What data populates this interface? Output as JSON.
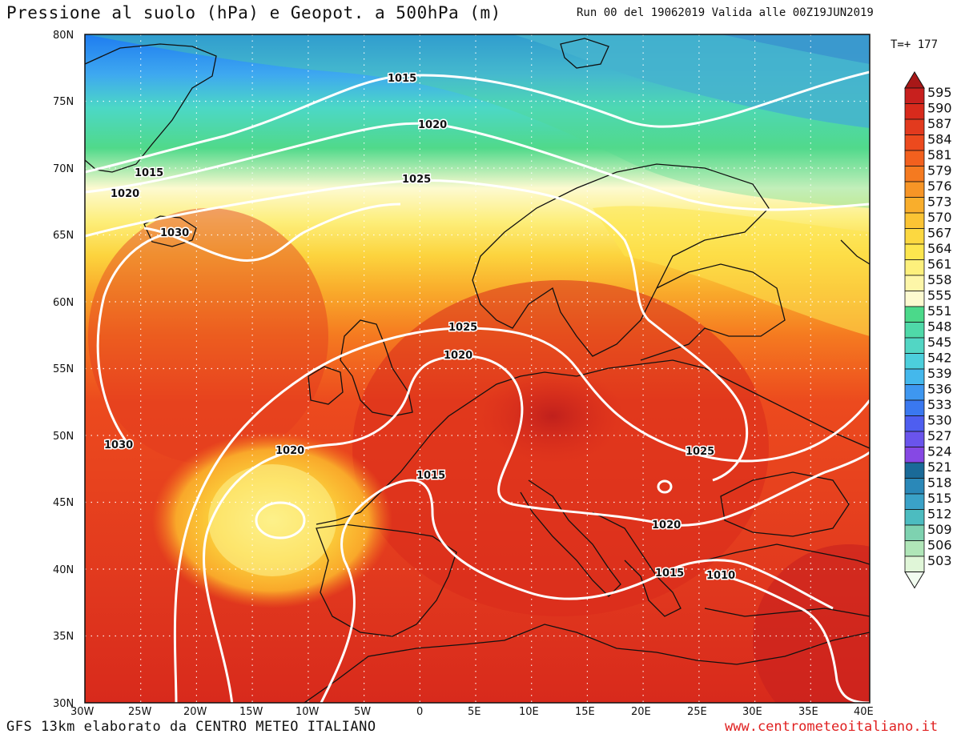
{
  "header": {
    "title": "Pressione al suolo (hPa) e Geopot. a 500hPa (m)",
    "run_info": "Run 00 del 19062019  Valida alle 00Z19JUN2019",
    "timestep": "T=+ 177"
  },
  "footer": {
    "model_credit": "GFS 13km elaborato da CENTRO METEO ITALIANO",
    "website": "www.centrometeoitaliano.it"
  },
  "map": {
    "lat_labels": [
      "80N",
      "75N",
      "70N",
      "65N",
      "60N",
      "55N",
      "50N",
      "45N",
      "40N",
      "35N",
      "30N"
    ],
    "lon_labels": [
      "30W",
      "25W",
      "20W",
      "15W",
      "10W",
      "5W",
      "0",
      "5E",
      "10E",
      "15E",
      "20E",
      "25E",
      "30E",
      "35E",
      "40E"
    ],
    "isobar_labels": [
      "1015",
      "1020",
      "1025",
      "1015",
      "1020",
      "1030",
      "1025",
      "1020",
      "1030",
      "1020",
      "1015",
      "1025",
      "1020",
      "1015",
      "1010"
    ]
  },
  "colorbar": {
    "levels": [
      "595",
      "590",
      "587",
      "584",
      "581",
      "579",
      "576",
      "573",
      "570",
      "567",
      "564",
      "561",
      "558",
      "555",
      "551",
      "548",
      "545",
      "542",
      "539",
      "536",
      "533",
      "530",
      "527",
      "524",
      "521",
      "518",
      "515",
      "512",
      "509",
      "506",
      "503"
    ],
    "colors": [
      "#c8201e",
      "#d82a1c",
      "#e23a1e",
      "#ec4a1e",
      "#f2601e",
      "#f57a20",
      "#f79526",
      "#f9ae2c",
      "#fbc434",
      "#fcd840",
      "#fde64e",
      "#fdf07c",
      "#fdf6a8",
      "#fdfad0",
      "#4bd98a",
      "#4fd9a8",
      "#52d6c4",
      "#4ccfdc",
      "#44b8ec",
      "#3e97f0",
      "#3a78f0",
      "#4e5ef0",
      "#6a54ec",
      "#8648e4",
      "#1a6a98",
      "#2a88b8",
      "#3aa2c8",
      "#4cbcc0",
      "#7ed2b0",
      "#b0e6b8",
      "#e0f6d8"
    ],
    "top_color": "#a81818",
    "bottom_color": "#f2fcf0"
  }
}
